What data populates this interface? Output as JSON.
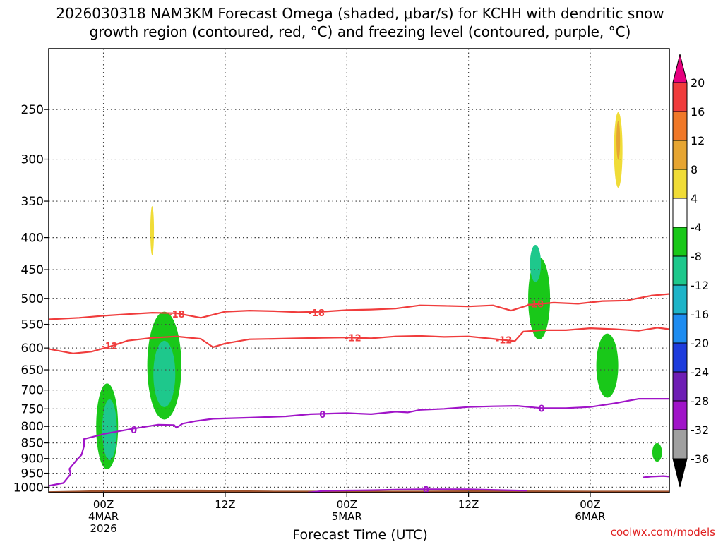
{
  "chart_data": {
    "type": "heatmap",
    "title_lines": [
      "2026030318 NAM3KM Forecast Omega (shaded, μbar/s) for KCHH with dendritic snow",
      "growth region (contoured, red, °C) and freezing level (contoured, purple, °C)"
    ],
    "xlabel": "Forecast Time (UTC)",
    "credit": "coolwx.com/models",
    "y_axis": {
      "type": "log-pressure",
      "range_hpa": [
        1020,
        200
      ],
      "ticks": [
        250,
        300,
        350,
        400,
        450,
        500,
        550,
        600,
        650,
        700,
        750,
        800,
        850,
        900,
        950,
        1000
      ]
    },
    "x_axis": {
      "range_hours": [
        -4.5,
        46.5
      ],
      "ticks": [
        {
          "hour": 0,
          "label": "00Z",
          "sub": [
            "4MAR",
            "2026"
          ]
        },
        {
          "hour": 10,
          "label": "12Z",
          "sub": []
        },
        {
          "hour": 20,
          "label": "00Z",
          "sub": [
            "5MAR"
          ]
        },
        {
          "hour": 30,
          "label": "12Z",
          "sub": []
        },
        {
          "hour": 40,
          "label": "00Z",
          "sub": [
            "6MAR"
          ]
        }
      ]
    },
    "colorbar": {
      "labels": [
        "20",
        "16",
        "12",
        "8",
        "4",
        "-4",
        "-8",
        "-12",
        "-16",
        "-20",
        "-24",
        "-28",
        "-32",
        "-36"
      ],
      "colors": [
        "#e6007e",
        "#f03c3c",
        "#f07828",
        "#e6a532",
        "#f0dc37",
        "#ffffff",
        "#19c819",
        "#1ec88c",
        "#1eb4c8",
        "#1e8cf0",
        "#1e3cdc",
        "#6e1eb4",
        "#a014c8",
        "#a0a0a0",
        "#000000"
      ]
    },
    "omega_regions": [
      {
        "level": "-4",
        "center": [
          0.5,
          830
        ],
        "size": [
          2.6,
          310
        ]
      },
      {
        "level": "-8",
        "center": [
          0.3,
          800
        ],
        "size": [
          1.8,
          250
        ]
      },
      {
        "level": "-12",
        "center": [
          0.5,
          810
        ],
        "size": [
          1.2,
          180
        ]
      },
      {
        "level": "-4",
        "center": [
          1.6,
          600
        ],
        "size": [
          0.7,
          130
        ]
      },
      {
        "level": "-4",
        "center": [
          3.2,
          380
        ],
        "size": [
          0.7,
          90
        ]
      },
      {
        "level": "4",
        "center": [
          4.0,
          380
        ],
        "size": [
          0.7,
          150
        ]
      },
      {
        "level": "8",
        "center": [
          4.0,
          390
        ],
        "size": [
          0.3,
          70
        ]
      },
      {
        "level": "4",
        "center": [
          -1.7,
          340
        ],
        "size": [
          0.3,
          50
        ]
      },
      {
        "level": "4",
        "center": [
          3.2,
          520
        ],
        "size": [
          0.3,
          40
        ]
      },
      {
        "level": "-4",
        "center": [
          5.2,
          640
        ],
        "size": [
          3.6,
          350
        ]
      },
      {
        "level": "-8",
        "center": [
          5.0,
          640
        ],
        "size": [
          2.8,
          250
        ]
      },
      {
        "level": "-12",
        "center": [
          5.0,
          660
        ],
        "size": [
          1.8,
          160
        ]
      },
      {
        "level": "4",
        "center": [
          11.0,
          510
        ],
        "size": [
          2.8,
          120
        ]
      },
      {
        "level": "4",
        "center": [
          15.0,
          365
        ],
        "size": [
          1.1,
          70
        ]
      },
      {
        "level": "-4",
        "center": [
          26.2,
          690
        ],
        "size": [
          0.9,
          250
        ]
      },
      {
        "level": "-4",
        "center": [
          29.0,
          285
        ],
        "size": [
          0.3,
          50
        ]
      },
      {
        "level": "-4",
        "center": [
          30.8,
          345
        ],
        "size": [
          0.2,
          40
        ]
      },
      {
        "level": "4",
        "center": [
          27.0,
          470
        ],
        "size": [
          0.3,
          50
        ]
      },
      {
        "level": "4",
        "center": [
          28.5,
          425
        ],
        "size": [
          0.3,
          80
        ]
      },
      {
        "level": "4",
        "center": [
          30.5,
          475
        ],
        "size": [
          0.2,
          30
        ]
      },
      {
        "level": "4",
        "center": [
          34.6,
          270
        ],
        "size": [
          0.9,
          130
        ]
      },
      {
        "level": "-4",
        "center": [
          35.6,
          560
        ],
        "size": [
          2.8,
          330
        ]
      },
      {
        "level": "-8",
        "center": [
          35.8,
          500
        ],
        "size": [
          1.8,
          150
        ]
      },
      {
        "level": "-12",
        "center": [
          35.5,
          440
        ],
        "size": [
          0.9,
          60
        ]
      },
      {
        "level": "4",
        "center": [
          34.0,
          620
        ],
        "size": [
          1.4,
          160
        ]
      },
      {
        "level": "-4",
        "center": [
          38.2,
          380
        ],
        "size": [
          0.9,
          90
        ]
      },
      {
        "level": "4",
        "center": [
          42.3,
          290
        ],
        "size": [
          1.4,
          180
        ]
      },
      {
        "level": "8",
        "center": [
          42.3,
          290
        ],
        "size": [
          0.7,
          80
        ]
      },
      {
        "level": "12",
        "center": [
          42.3,
          280
        ],
        "size": [
          0.3,
          40
        ]
      },
      {
        "level": "-4",
        "center": [
          41.9,
          720
        ],
        "size": [
          3.4,
          330
        ]
      },
      {
        "level": "-8",
        "center": [
          41.4,
          640
        ],
        "size": [
          1.8,
          150
        ]
      },
      {
        "level": "-4",
        "center": [
          45.0,
          410
        ],
        "size": [
          1.2,
          180
        ]
      },
      {
        "level": "-4",
        "center": [
          45.0,
          870
        ],
        "size": [
          2.0,
          120
        ]
      },
      {
        "level": "-8",
        "center": [
          45.5,
          880
        ],
        "size": [
          0.8,
          60
        ]
      },
      {
        "level": "-4",
        "center": [
          40.0,
          850
        ],
        "size": [
          0.8,
          60
        ]
      },
      {
        "level": "4",
        "center": [
          46.2,
          610
        ],
        "size": [
          0.4,
          40
        ]
      }
    ],
    "contours": [
      {
        "name": "minus-18-isotherm",
        "label": "-18",
        "color": "#f03c3c",
        "label_positions": [
          [
            6.0,
            530
          ],
          [
            17.5,
            527
          ],
          [
            35.5,
            510
          ]
        ],
        "points": [
          [
            -4.5,
            540
          ],
          [
            -2,
            537
          ],
          [
            0,
            533
          ],
          [
            2,
            530
          ],
          [
            4,
            527
          ],
          [
            6,
            528
          ],
          [
            8,
            537
          ],
          [
            10,
            525
          ],
          [
            12,
            523
          ],
          [
            14,
            524
          ],
          [
            16,
            526
          ],
          [
            18,
            525
          ],
          [
            20,
            522
          ],
          [
            22,
            521
          ],
          [
            24,
            519
          ],
          [
            26,
            513
          ],
          [
            28,
            514
          ],
          [
            30,
            515
          ],
          [
            32,
            513
          ],
          [
            33.5,
            523
          ],
          [
            35,
            512
          ],
          [
            37,
            508
          ],
          [
            39,
            510
          ],
          [
            41,
            505
          ],
          [
            43,
            504
          ],
          [
            45,
            495
          ],
          [
            46.5,
            492
          ]
        ]
      },
      {
        "name": "minus-12-isotherm",
        "label": "-12",
        "color": "#f03c3c",
        "label_positions": [
          [
            0.5,
            595
          ],
          [
            20.5,
            578
          ],
          [
            32.9,
            582
          ]
        ],
        "points": [
          [
            -4.5,
            602
          ],
          [
            -2.5,
            612
          ],
          [
            -1,
            608
          ],
          [
            0.5,
            597
          ],
          [
            2,
            584
          ],
          [
            4,
            578
          ],
          [
            6,
            575
          ],
          [
            8,
            580
          ],
          [
            9,
            598
          ],
          [
            10,
            590
          ],
          [
            12,
            581
          ],
          [
            14,
            580
          ],
          [
            16,
            579
          ],
          [
            18,
            578
          ],
          [
            20,
            577
          ],
          [
            22,
            579
          ],
          [
            24,
            575
          ],
          [
            26,
            574
          ],
          [
            28,
            576
          ],
          [
            30,
            575
          ],
          [
            32,
            580
          ],
          [
            33.8,
            585
          ],
          [
            34.5,
            565
          ],
          [
            36,
            562
          ],
          [
            38,
            562
          ],
          [
            40,
            558
          ],
          [
            42,
            560
          ],
          [
            44,
            563
          ],
          [
            45.5,
            557
          ],
          [
            46.5,
            560
          ]
        ]
      },
      {
        "name": "freezing-level-upper",
        "label": "0",
        "color": "#a014c8",
        "label_positions": [
          [
            2.5,
            810
          ],
          [
            18,
            765
          ],
          [
            36,
            748
          ]
        ],
        "points": [
          [
            -4.5,
            995
          ],
          [
            -3.3,
            985
          ],
          [
            -2.7,
            953
          ],
          [
            -2.8,
            935
          ],
          [
            -2.2,
            905
          ],
          [
            -1.8,
            888
          ],
          [
            -1.6,
            860
          ],
          [
            -1.6,
            838
          ],
          [
            0.1,
            822
          ],
          [
            2.4,
            807
          ],
          [
            4.5,
            795
          ],
          [
            5.8,
            796
          ],
          [
            6,
            804
          ],
          [
            6.5,
            792
          ],
          [
            7.5,
            785
          ],
          [
            9,
            778
          ],
          [
            12,
            775
          ],
          [
            15,
            771
          ],
          [
            17,
            765
          ],
          [
            20,
            762
          ],
          [
            22,
            765
          ],
          [
            24,
            758
          ],
          [
            25,
            760
          ],
          [
            26,
            753
          ],
          [
            28,
            750
          ],
          [
            30,
            745
          ],
          [
            32,
            743
          ],
          [
            34,
            742
          ],
          [
            36,
            748
          ],
          [
            38,
            748
          ],
          [
            40,
            745
          ],
          [
            42,
            735
          ],
          [
            44,
            723
          ],
          [
            46.5,
            723
          ]
        ]
      },
      {
        "name": "freezing-level-lower",
        "label": "0",
        "color": "#a014c8",
        "label_positions": [
          [
            26.5,
            1008
          ]
        ],
        "points": [
          [
            16.8,
            1020
          ],
          [
            18,
            1014
          ],
          [
            20,
            1012
          ],
          [
            22,
            1011
          ],
          [
            24,
            1009
          ],
          [
            26,
            1008
          ],
          [
            28,
            1008
          ],
          [
            30,
            1008
          ],
          [
            33,
            1011
          ],
          [
            34.8,
            1013
          ]
        ]
      },
      {
        "name": "freezing-level-surface",
        "label": "",
        "color": "#a014c8",
        "label_positions": [],
        "points": [
          [
            44.3,
            965
          ],
          [
            45,
            962
          ],
          [
            46,
            960
          ],
          [
            46.5,
            962
          ]
        ]
      }
    ],
    "terrain": {
      "color": "#a0522d",
      "points": [
        [
          -4.5,
          1015
        ],
        [
          -2,
          1013
        ],
        [
          0,
          1011
        ],
        [
          2,
          1010
        ],
        [
          4,
          1009
        ],
        [
          8,
          1009
        ],
        [
          10,
          1010
        ],
        [
          12,
          1012
        ],
        [
          14,
          1013
        ],
        [
          16,
          1013
        ],
        [
          20,
          1013
        ],
        [
          26,
          1013
        ],
        [
          30,
          1012
        ],
        [
          40,
          1013
        ],
        [
          46.5,
          1013
        ]
      ]
    }
  }
}
